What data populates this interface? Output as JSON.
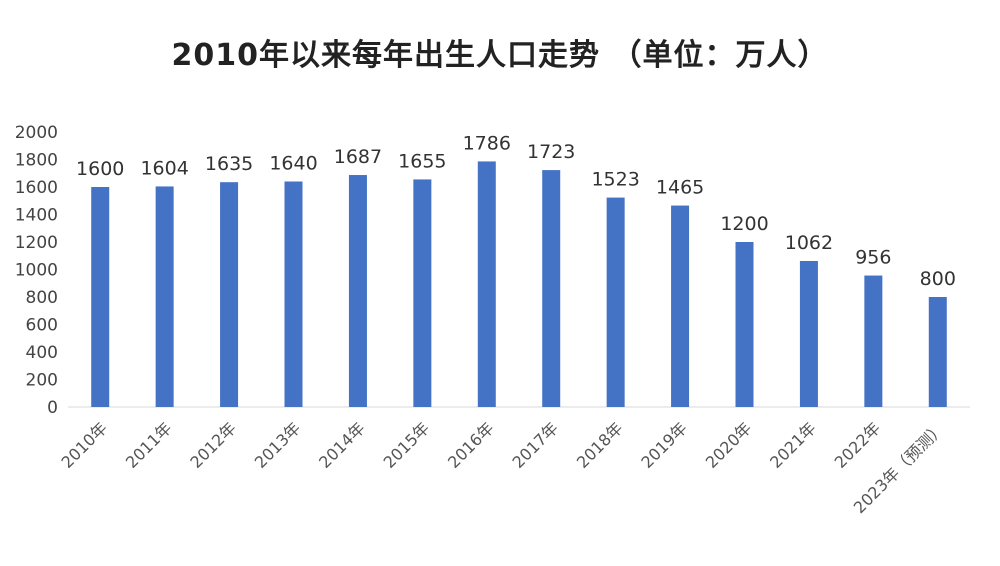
{
  "chart_data": {
    "type": "bar",
    "title": "2010年以来每年出生人口走势 （单位：万人）",
    "categories": [
      "2010年",
      "2011年",
      "2012年",
      "2013年",
      "2014年",
      "2015年",
      "2016年",
      "2017年",
      "2018年",
      "2019年",
      "2020年",
      "2021年",
      "2022年",
      "2023年（预测）"
    ],
    "values": [
      1600,
      1604,
      1635,
      1640,
      1687,
      1655,
      1786,
      1723,
      1523,
      1465,
      1200,
      1062,
      956,
      800
    ],
    "ylim": [
      0,
      2000
    ],
    "yticks": [
      0,
      200,
      400,
      600,
      800,
      1000,
      1200,
      1400,
      1600,
      1800,
      2000
    ],
    "xlabel": "",
    "ylabel": "",
    "grid": false,
    "bar_color": "#4472C4"
  }
}
